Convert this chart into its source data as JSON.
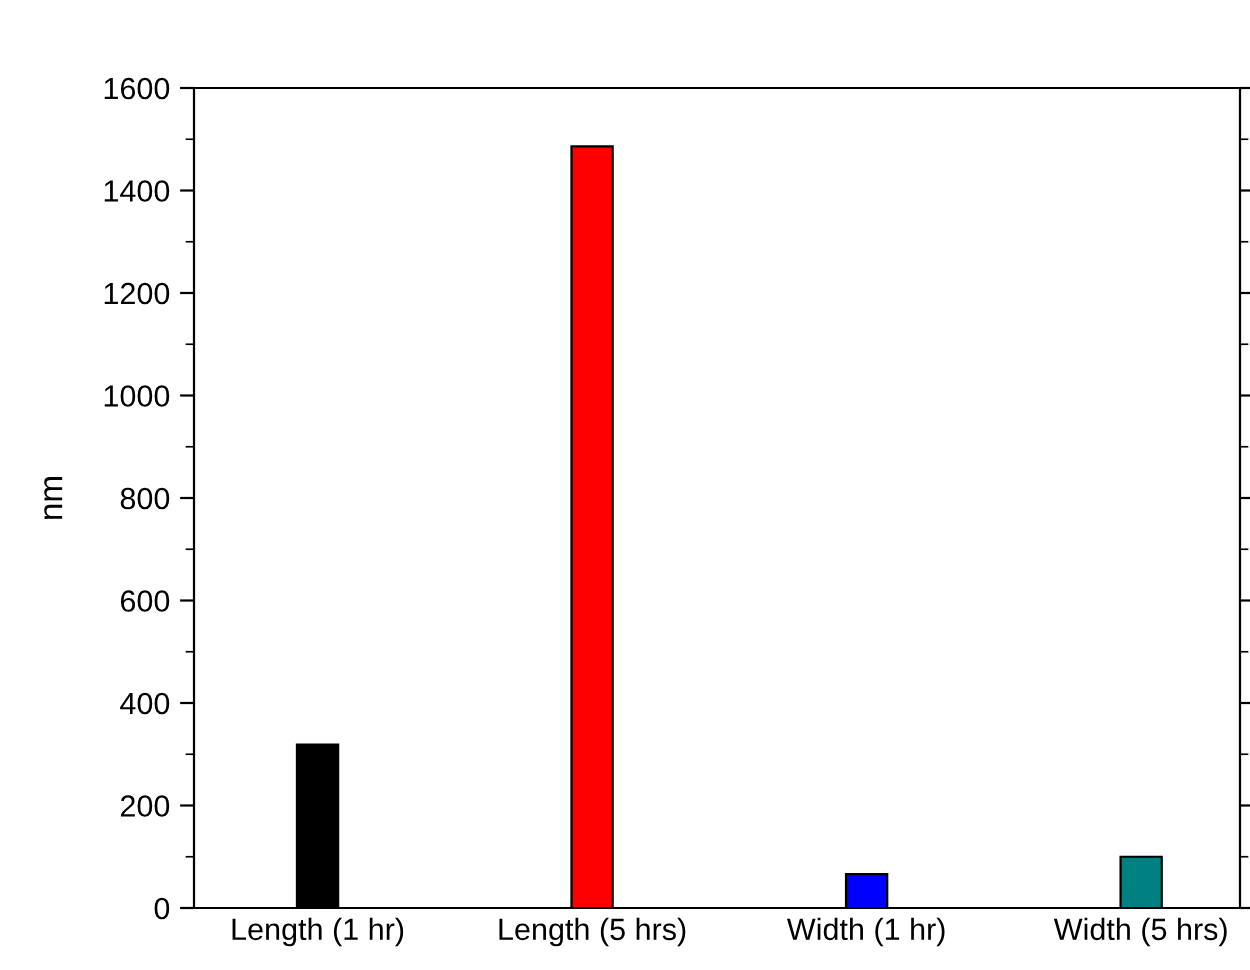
{
  "chart_data": {
    "type": "bar",
    "ylabel": "nm",
    "categories": [
      "Length (1 hr)",
      "Length (5 hrs)",
      "Width (1 hr)",
      "Width (5 hrs)"
    ],
    "values": [
      319,
      1486,
      66,
      100
    ],
    "colors": [
      "#000000",
      "#ff0000",
      "#0000ff",
      "#008080"
    ],
    "ylim": [
      0,
      1600
    ],
    "yticks": [
      0,
      200,
      400,
      600,
      800,
      1000,
      1200,
      1400,
      1600
    ],
    "grid": false
  }
}
